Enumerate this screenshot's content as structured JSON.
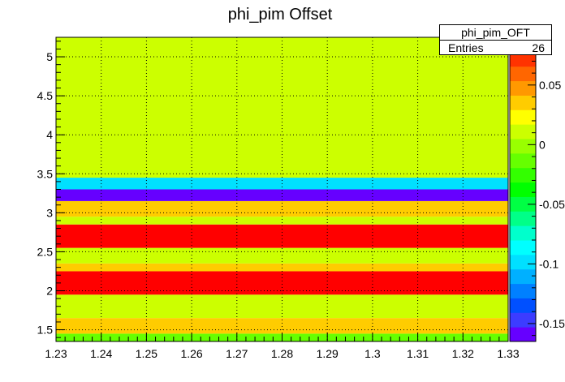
{
  "chart_data": {
    "type": "heatmap",
    "title": "phi_pim Offset",
    "xlim": [
      1.23,
      1.33
    ],
    "ylim": [
      1.35,
      5.25
    ],
    "x_ticks": [
      "1.23",
      "1.24",
      "1.25",
      "1.26",
      "1.27",
      "1.28",
      "1.29",
      "1.3",
      "1.31",
      "1.32",
      "1.33"
    ],
    "y_ticks": [
      "1.5",
      "2",
      "2.5",
      "3",
      "3.5",
      "4",
      "4.5",
      "5"
    ],
    "z_ticks": [
      "-0.15",
      "-0.1",
      "-0.05",
      "0",
      "0.05"
    ],
    "zlim": [
      -0.165,
      0.09
    ],
    "grid": true,
    "stats_box": {
      "name": "phi_pim_OFT",
      "entries_label": "Entries",
      "entries": "26"
    },
    "rows": [
      {
        "y0": 1.35,
        "y1": 1.45,
        "z": -0.01
      },
      {
        "y0": 1.45,
        "y1": 1.65,
        "z": 0.035
      },
      {
        "y0": 1.65,
        "y1": 1.95,
        "z": 0.015
      },
      {
        "y0": 1.95,
        "y1": 2.25,
        "z": 0.085
      },
      {
        "y0": 2.25,
        "y1": 2.35,
        "z": 0.035
      },
      {
        "y0": 2.35,
        "y1": 2.55,
        "z": 0.015
      },
      {
        "y0": 2.55,
        "y1": 2.85,
        "z": 0.085
      },
      {
        "y0": 2.85,
        "y1": 2.95,
        "z": 0.015
      },
      {
        "y0": 2.95,
        "y1": 3.15,
        "z": 0.04
      },
      {
        "y0": 3.15,
        "y1": 3.3,
        "z": -0.155
      },
      {
        "y0": 3.3,
        "y1": 3.45,
        "z": -0.095
      },
      {
        "y0": 3.45,
        "y1": 5.25,
        "z": 0.005
      }
    ]
  }
}
